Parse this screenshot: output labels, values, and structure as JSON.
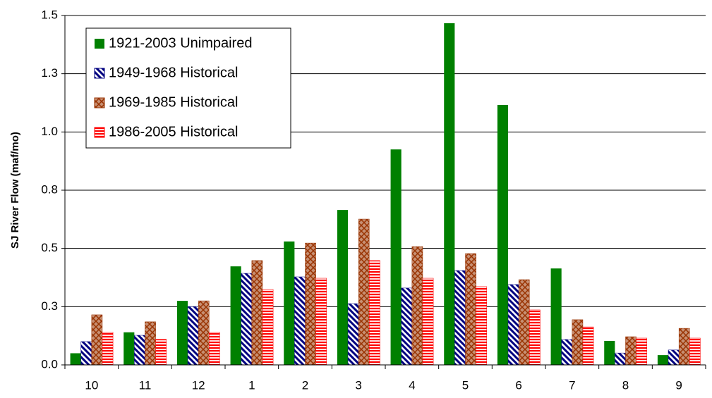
{
  "chart_data": {
    "type": "bar",
    "y_label": "SJ River Flow (maf/mo)",
    "categories": [
      "10",
      "11",
      "12",
      "1",
      "2",
      "3",
      "4",
      "5",
      "6",
      "7",
      "8",
      "9"
    ],
    "series": [
      {
        "name": "1921-2003 Unimpaired",
        "color": "#008000",
        "pattern": "solid",
        "values": [
          0.05,
          0.14,
          0.275,
          0.423,
          0.53,
          0.665,
          0.925,
          1.467,
          1.116,
          0.414,
          0.103,
          0.042
        ]
      },
      {
        "name": "1949-1968 Historical",
        "color": "#000080",
        "pattern": "diagonal",
        "values": [
          0.1,
          0.127,
          0.25,
          0.393,
          0.378,
          0.263,
          0.33,
          0.405,
          0.345,
          0.109,
          0.051,
          0.064
        ]
      },
      {
        "name": "1969-1985 Historical",
        "color": "#993300",
        "pattern": "crosshatch",
        "values": [
          0.215,
          0.185,
          0.275,
          0.448,
          0.523,
          0.626,
          0.508,
          0.478,
          0.366,
          0.194,
          0.121,
          0.157
        ]
      },
      {
        "name": "1986-2005 Historical",
        "color": "#ff0000",
        "pattern": "horizontal",
        "values": [
          0.14,
          0.11,
          0.14,
          0.324,
          0.372,
          0.448,
          0.372,
          0.336,
          0.236,
          0.163,
          0.115,
          0.115
        ]
      }
    ],
    "ylim": [
      0,
      1.5
    ],
    "yticks": [
      {
        "value": 0,
        "label": "0.0"
      },
      {
        "value": 0.25,
        "label": "0.3"
      },
      {
        "value": 0.5,
        "label": "0.5"
      },
      {
        "value": 0.75,
        "label": "0.8"
      },
      {
        "value": 1,
        "label": "1.0"
      },
      {
        "value": 1.25,
        "label": "1.3"
      },
      {
        "value": 1.5,
        "label": "1.5"
      }
    ],
    "grid": true,
    "legend": "top-left"
  }
}
